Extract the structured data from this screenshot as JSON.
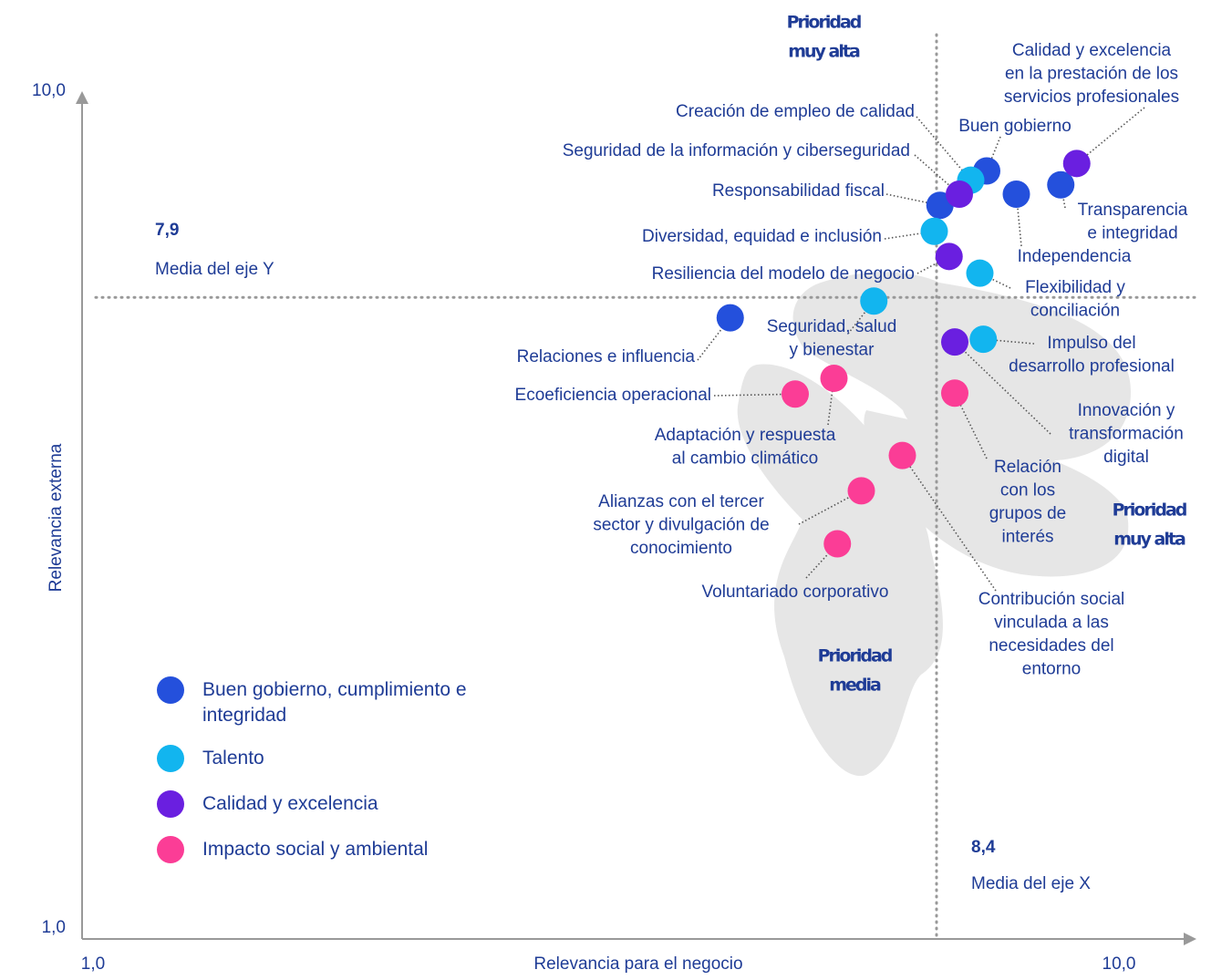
{
  "chart_data": {
    "type": "scatter",
    "xlabel": "Relevancia para el negocio",
    "ylabel": "Relevancia externa",
    "xlim": [
      1,
      10
    ],
    "ylim": [
      1,
      10
    ],
    "xticks": [
      {
        "value": 1,
        "label": "1,0"
      },
      {
        "value": 10,
        "label": "10,0"
      }
    ],
    "yticks": [
      {
        "value": 1,
        "label": "1,0"
      },
      {
        "value": 10,
        "label": "10,0"
      }
    ],
    "x_mean": {
      "value": 8.4,
      "label": "8,4",
      "text": "Media del eje X"
    },
    "y_mean": {
      "value": 7.9,
      "label": "7,9",
      "text": "Media del eje Y"
    },
    "regions": [
      [
        "Prioridad",
        "muy alta"
      ],
      [
        "Prioridad",
        "muy alta"
      ],
      [
        "Prioridad",
        "media"
      ]
    ],
    "series": [
      {
        "name": "Buen gobierno, cumplimiento e integridad",
        "color": "#2450dc",
        "x": [
          8.84,
          9.1,
          9.49,
          8.43,
          6.59
        ],
        "values": [
          9.26,
          9.01,
          9.11,
          8.89,
          7.68
        ],
        "labels": [
          [
            "Buen gobierno"
          ],
          [
            "Independencia"
          ],
          [
            "Transparencia",
            "e integridad"
          ],
          [
            "Responsabilidad fiscal"
          ],
          [
            "Relaciones e influencia"
          ]
        ]
      },
      {
        "name": "Talento",
        "color": "#12b5ef",
        "x": [
          8.7,
          8.38,
          8.78,
          7.85,
          8.81
        ],
        "values": [
          9.16,
          8.61,
          8.16,
          7.86,
          7.45
        ],
        "labels": [
          [
            "Creación de empleo de calidad"
          ],
          [
            "Diversidad, equidad e inclusión"
          ],
          [
            "Flexibilidad y",
            "conciliación"
          ],
          [
            "Seguridad, salud",
            "y bienestar"
          ],
          [
            "Impulso del",
            "desarrollo profesional"
          ]
        ]
      },
      {
        "name": "Calidad y excelencia",
        "color": "#6a1fe0",
        "x": [
          9.63,
          8.6,
          8.51,
          8.56
        ],
        "values": [
          9.34,
          9.01,
          8.34,
          7.42
        ],
        "labels": [
          [
            "Calidad y excelencia",
            "en la prestación de los",
            "servicios profesionales"
          ],
          [
            "Seguridad de la información y ciberseguridad"
          ],
          [
            "Resiliencia del modelo de negocio"
          ],
          [
            "Innovación y",
            "transformación",
            "digital"
          ]
        ]
      },
      {
        "name": "Impacto social y ambiental",
        "color": "#fb3d96",
        "x": [
          7.16,
          7.5,
          8.56,
          8.1,
          7.74,
          7.53
        ],
        "values": [
          6.86,
          7.03,
          6.87,
          6.2,
          5.82,
          5.25
        ],
        "labels": [
          [
            "Ecoeficiencia operacional"
          ],
          [
            "Adaptación y respuesta",
            "al cambio climático"
          ],
          [
            "Relación",
            "con los",
            "grupos de",
            "interés"
          ],
          [
            "Contribución social",
            "vinculada a las",
            "necesidades del",
            "entorno"
          ],
          [
            "Alianzas con el tercer",
            "sector y divulgación de",
            "conocimiento"
          ],
          [
            "Voluntariado corporativo"
          ]
        ]
      }
    ]
  }
}
